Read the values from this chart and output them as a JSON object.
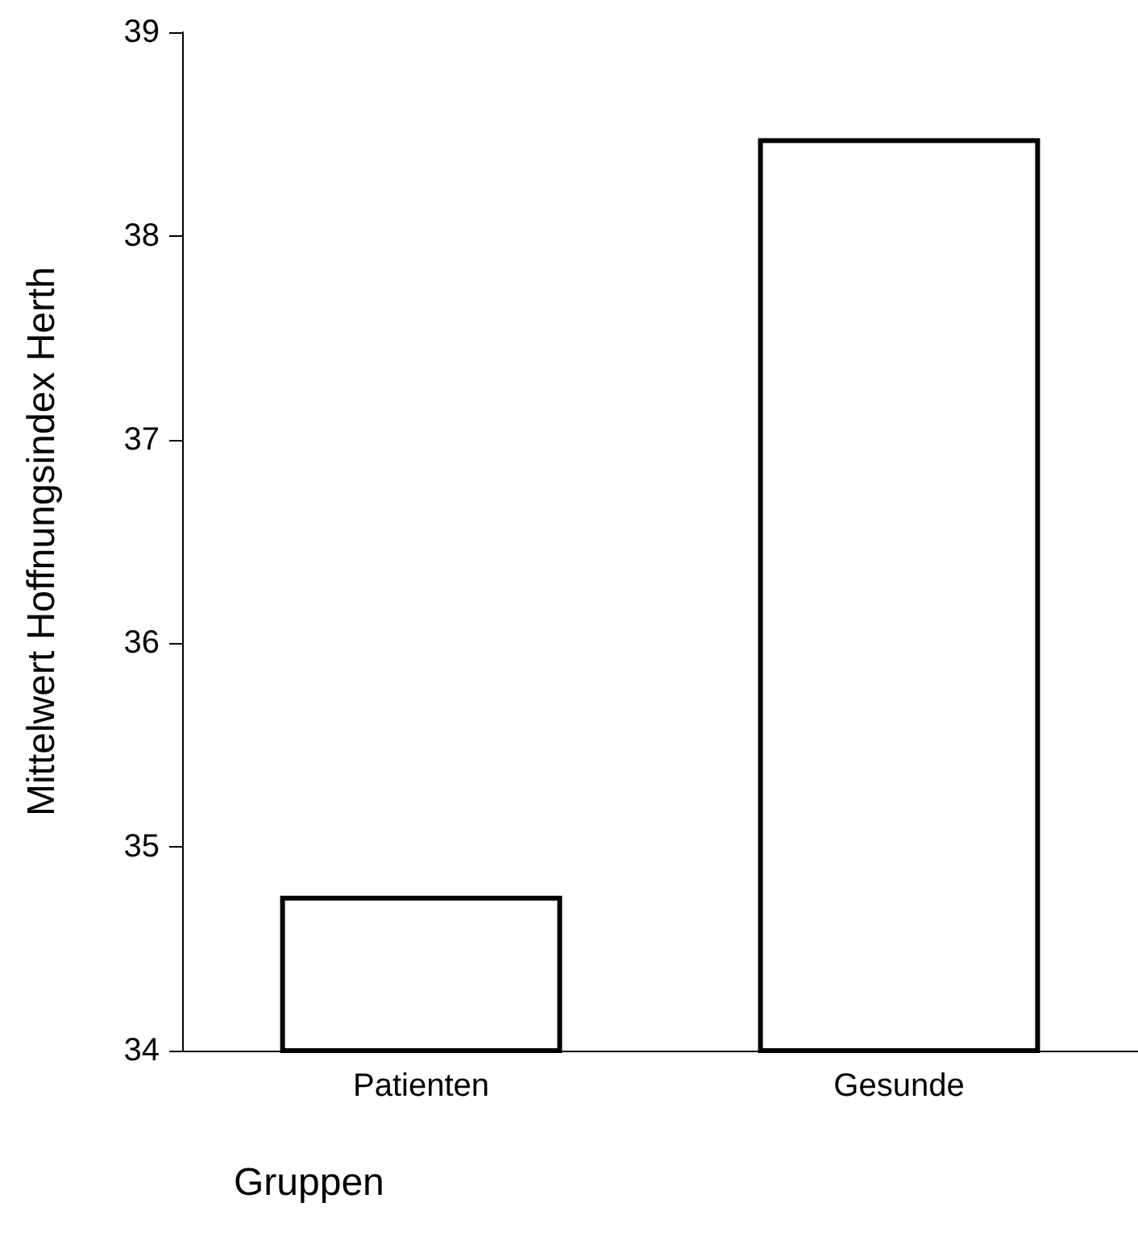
{
  "chart_data": {
    "type": "bar",
    "xlabel": "Gruppen",
    "ylabel": "Mittelwert Hoffnungsindex Herth",
    "categories": [
      "Patienten",
      "Gesunde"
    ],
    "values": [
      34.76,
      38.48
    ],
    "color": "#ffffff",
    "ylim": [
      34,
      39
    ],
    "yticks": [
      34,
      35,
      36,
      37,
      38,
      39
    ],
    "grid": false
  }
}
